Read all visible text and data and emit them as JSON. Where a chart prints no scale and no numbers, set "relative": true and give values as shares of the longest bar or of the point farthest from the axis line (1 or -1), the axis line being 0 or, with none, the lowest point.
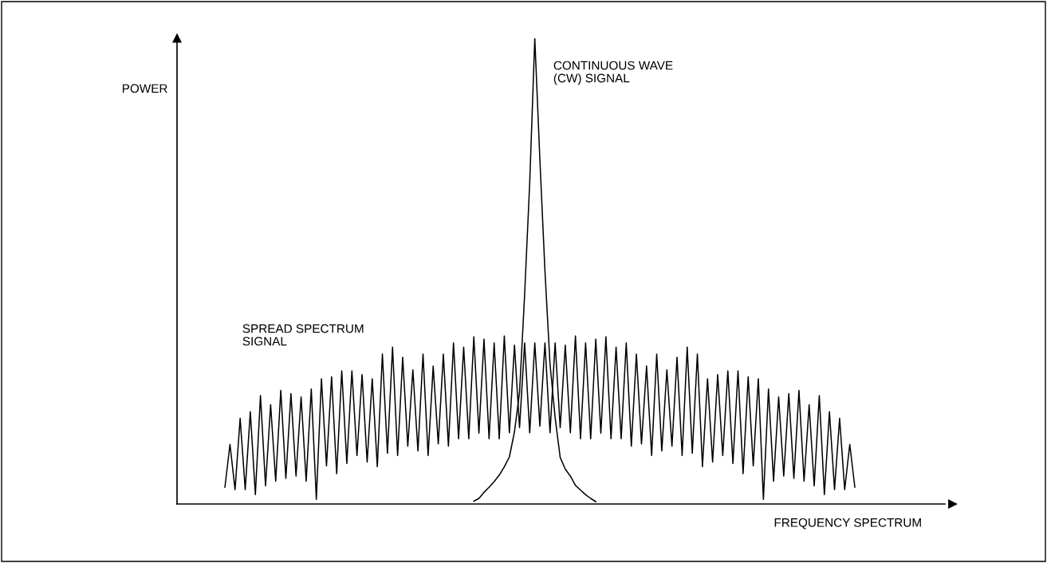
{
  "chart_data": {
    "type": "line",
    "relative": true,
    "xlabel": "FREQUENCY SPECTRUM",
    "ylabel": "POWER",
    "tick_labels": false,
    "legend": false,
    "marker": "none",
    "line_style": "solid",
    "categories": [
      null,
      null,
      null,
      null,
      null,
      null,
      null,
      null,
      null,
      null,
      null,
      null,
      null,
      null,
      null,
      null,
      null,
      null,
      null,
      null,
      null,
      null,
      null,
      null,
      null,
      null,
      null,
      null,
      null,
      null,
      null,
      null,
      null,
      null,
      null,
      null,
      null,
      null,
      null,
      null,
      null,
      null,
      null,
      null,
      null,
      null,
      null,
      null,
      null,
      null,
      null,
      null,
      null,
      null,
      null,
      null,
      null,
      null,
      null,
      null,
      null,
      null,
      null,
      null,
      null,
      null,
      null,
      null,
      null,
      null,
      null,
      null,
      null,
      null,
      null,
      null,
      null,
      null,
      null,
      null,
      null,
      null,
      null,
      null,
      null,
      null,
      null,
      null,
      null,
      null,
      null,
      null,
      null,
      null,
      null,
      null,
      null,
      null,
      null,
      null,
      null,
      null,
      null,
      null,
      null,
      null,
      null,
      null,
      null,
      null,
      null,
      null,
      null,
      null,
      null,
      null,
      null,
      null,
      null,
      null,
      null,
      null,
      null,
      null,
      null
    ],
    "series": [
      {
        "name": "SPREAD SPECTRUM\nSIGNAL",
        "color": "#000000",
        "values": [
          0.036,
          0.128,
          0.031,
          0.184,
          0.031,
          0.198,
          0.02,
          0.233,
          0.039,
          0.213,
          0.049,
          0.244,
          0.055,
          0.237,
          0.06,
          0.23,
          0.049,
          0.247,
          0.01,
          0.269,
          0.082,
          0.273,
          0.065,
          0.286,
          0.087,
          0.286,
          0.104,
          0.278,
          0.09,
          0.269,
          0.08,
          0.322,
          0.109,
          0.337,
          0.104,
          0.315,
          0.124,
          0.288,
          0.114,
          0.322,
          0.104,
          0.296,
          0.129,
          0.322,
          0.124,
          0.346,
          0.14,
          0.337,
          0.14,
          0.359,
          0.152,
          0.354,
          0.14,
          0.346,
          0.14,
          0.361,
          0.153,
          0.341,
          0.164,
          0.346,
          0.153,
          0.346,
          0.167,
          0.346,
          0.153,
          0.346,
          0.164,
          0.341,
          0.153,
          0.361,
          0.14,
          0.346,
          0.14,
          0.354,
          0.152,
          0.359,
          0.14,
          0.337,
          0.14,
          0.346,
          0.124,
          0.322,
          0.129,
          0.296,
          0.104,
          0.322,
          0.114,
          0.288,
          0.124,
          0.315,
          0.104,
          0.337,
          0.109,
          0.322,
          0.08,
          0.269,
          0.09,
          0.278,
          0.104,
          0.286,
          0.087,
          0.286,
          0.065,
          0.273,
          0.082,
          0.269,
          0.01,
          0.247,
          0.049,
          0.23,
          0.06,
          0.237,
          0.055,
          0.244,
          0.049,
          0.213,
          0.039,
          0.233,
          0.02,
          0.198,
          0.031,
          0.184,
          0.031,
          0.128,
          0.036
        ]
      },
      {
        "name": "CONTINUOUS WAVE\n(CW) SIGNAL",
        "color": "#000000",
        "values": [
          null,
          null,
          null,
          null,
          null,
          null,
          null,
          null,
          null,
          null,
          null,
          null,
          null,
          null,
          null,
          null,
          null,
          null,
          null,
          null,
          null,
          null,
          null,
          null,
          null,
          null,
          null,
          null,
          null,
          null,
          null,
          null,
          null,
          null,
          null,
          null,
          null,
          null,
          null,
          null,
          null,
          null,
          null,
          null,
          null,
          null,
          null,
          null,
          null,
          0.006,
          0.012,
          0.025,
          0.036,
          0.048,
          0.062,
          0.08,
          0.101,
          0.155,
          0.24,
          0.45,
          0.69,
          1,
          0.74,
          0.5,
          0.3,
          0.186,
          0.1,
          0.075,
          0.06,
          0.04,
          0.03,
          0.02,
          0.012,
          0.005,
          null,
          null,
          null,
          null,
          null,
          null,
          null,
          null,
          null,
          null,
          null,
          null,
          null,
          null,
          null,
          null,
          null,
          null,
          null,
          null,
          null,
          null,
          null,
          null,
          null,
          null,
          null,
          null,
          null,
          null,
          null,
          null,
          null,
          null,
          null,
          null,
          null,
          null,
          null,
          null,
          null,
          null,
          null,
          null,
          null,
          null,
          null,
          null,
          null,
          null,
          null
        ]
      }
    ]
  }
}
